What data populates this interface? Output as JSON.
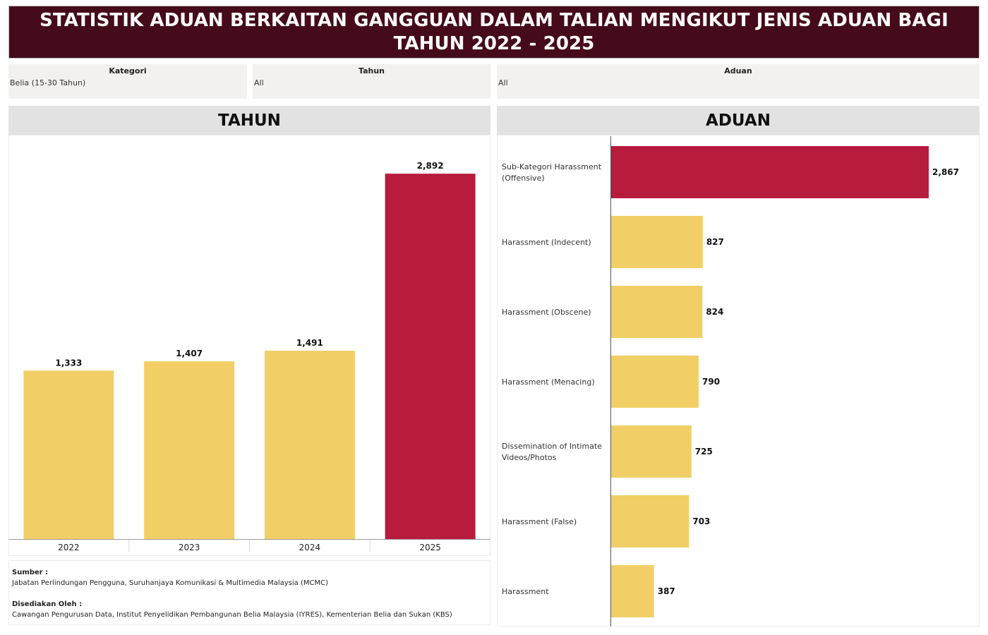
{
  "title": "STATISTIK ADUAN BERKAITAN GANGGUAN DALAM TALIAN MENGIKUT JENIS ADUAN BAGI TAHUN 2022 - 2025",
  "filters": [
    {
      "label": "Kategori",
      "value": "Belia (15-30 Tahun)"
    },
    {
      "label": "Tahun",
      "value": "All"
    },
    {
      "label": "Aduan",
      "value": "All"
    }
  ],
  "colors": {
    "title_bg": "#450b1b",
    "bar_default": "#f2cf66",
    "bar_highlight": "#b71c3f"
  },
  "source": {
    "source_label": "Sumber :",
    "source_text": "Jabatan Perlindungan Pengguna, Suruhanjaya Komunikasi & Multimedia Malaysia (MCMC)",
    "prepared_label": "Disediakan Oleh :",
    "prepared_text": "Cawangan Pengurusan Data, Institut Penyelidikan Pembangunan Belia Malaysia (IYRES), Kementerian Belia dan Sukan (KBS)"
  },
  "chart_data": [
    {
      "type": "bar",
      "orientation": "vertical",
      "title": "TAHUN",
      "categories": [
        "2022",
        "2023",
        "2024",
        "2025"
      ],
      "values": [
        1333,
        1407,
        1491,
        2892
      ],
      "value_labels": [
        "1,333",
        "1,407",
        "1,491",
        "2,892"
      ],
      "highlight": [
        false,
        false,
        false,
        true
      ],
      "ylim": [
        0,
        3200
      ],
      "grid": false
    },
    {
      "type": "bar",
      "orientation": "horizontal",
      "title": "ADUAN",
      "categories": [
        "Sub-Kategori Harassment (Offensive)",
        "Harassment (Indecent)",
        "Harassment (Obscene)",
        "Harassment (Menacing)",
        "Dissemination of Intimate Videos/Photos",
        "Harassment (False)",
        "Harassment"
      ],
      "category_lines": [
        [
          "Sub-Kategori Harassment",
          "(Offensive)"
        ],
        [
          "Harassment (Indecent)"
        ],
        [
          "Harassment (Obscene)"
        ],
        [
          "Harassment (Menacing)"
        ],
        [
          "Dissemination of Intimate",
          "Videos/Photos"
        ],
        [
          "Harassment (False)"
        ],
        [
          "Harassment"
        ]
      ],
      "values": [
        2867,
        827,
        824,
        790,
        725,
        703,
        387
      ],
      "value_labels": [
        "2,867",
        "827",
        "824",
        "790",
        "725",
        "703",
        "387"
      ],
      "highlight": [
        true,
        false,
        false,
        false,
        false,
        false,
        false
      ],
      "xlim": [
        0,
        3300
      ],
      "grid": false
    }
  ]
}
